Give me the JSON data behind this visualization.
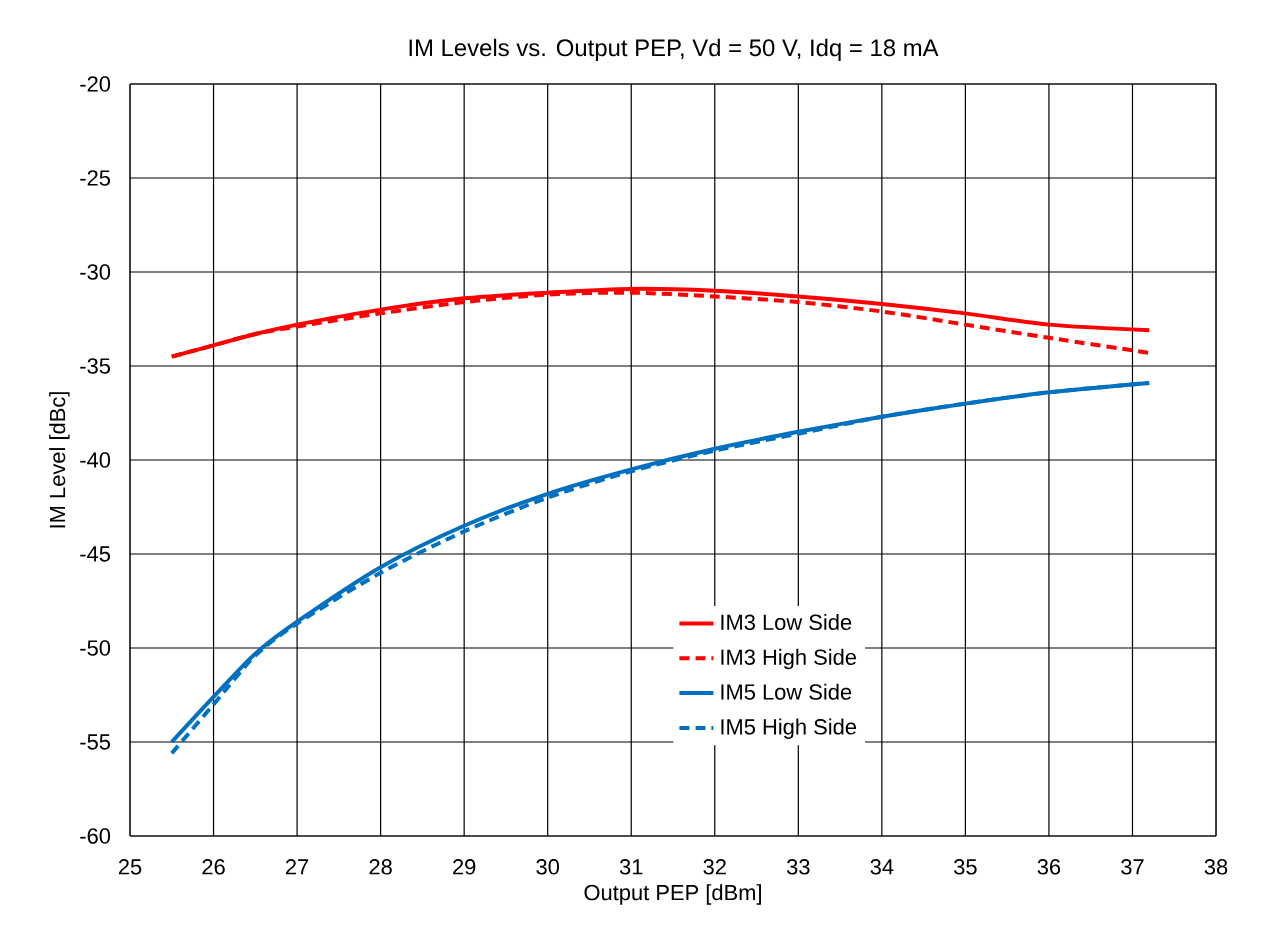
{
  "chart_data": {
    "type": "line",
    "title": "IM Levels vs. Output PEP, Vd = 50 V, Idq = 18 mA",
    "xlabel": "Output PEP [dBm]",
    "ylabel": "IM Level [dBc]",
    "x": [
      25.5,
      26,
      26.5,
      27,
      28,
      29,
      30,
      31,
      32,
      33,
      34,
      35,
      36,
      37.2
    ],
    "series": [
      {
        "name": "IM3 Low Side",
        "color": "#ff0000",
        "line_style": "solid",
        "values": [
          -34.5,
          -33.9,
          -33.3,
          -32.8,
          -32.0,
          -31.4,
          -31.1,
          -30.9,
          -31.0,
          -31.3,
          -31.7,
          -32.2,
          -32.8,
          -33.1
        ]
      },
      {
        "name": "IM3 High Side",
        "color": "#ff0000",
        "line_style": "dashed",
        "values": [
          -34.5,
          -33.9,
          -33.3,
          -32.9,
          -32.2,
          -31.6,
          -31.2,
          -31.1,
          -31.3,
          -31.6,
          -32.1,
          -32.8,
          -33.5,
          -34.3
        ]
      },
      {
        "name": "IM5 Low Side",
        "color": "#0070c0",
        "line_style": "solid",
        "values": [
          -55.0,
          -52.6,
          -50.3,
          -48.6,
          -45.7,
          -43.5,
          -41.8,
          -40.5,
          -39.4,
          -38.5,
          -37.7,
          -37.0,
          -36.4,
          -35.9
        ]
      },
      {
        "name": "IM5 High Side",
        "color": "#0070c0",
        "line_style": "dashed",
        "values": [
          -55.6,
          -53.0,
          -50.4,
          -48.7,
          -46.0,
          -43.8,
          -42.0,
          -40.6,
          -39.5,
          -38.6,
          -37.7,
          -37.0,
          -36.4,
          -35.9
        ]
      }
    ],
    "xlim": [
      25,
      38
    ],
    "xticks": [
      25,
      26,
      27,
      28,
      29,
      30,
      31,
      32,
      33,
      34,
      35,
      36,
      37,
      38
    ],
    "ylim": [
      -60,
      -20
    ],
    "yticks": [
      -60,
      -55,
      -50,
      -45,
      -40,
      -35,
      -30,
      -25,
      -20
    ],
    "grid": true,
    "legend": "right",
    "marker": "none"
  }
}
